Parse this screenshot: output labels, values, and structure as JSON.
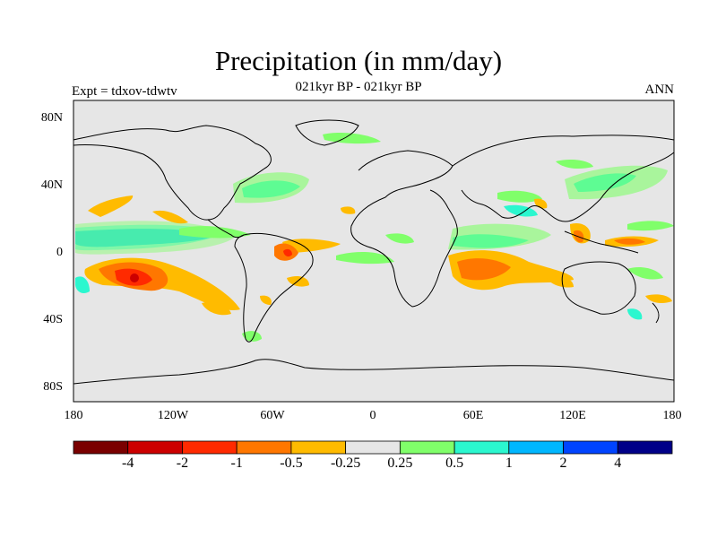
{
  "title": "Precipitation (in mm/day)",
  "subtitle": "021kyr BP - 021kyr BP",
  "left_label": "Expt = tdxov-tdwtv",
  "right_label": "ANN",
  "lat_labels": [
    "80N",
    "40N",
    "0",
    "40S",
    "80S"
  ],
  "lon_labels": [
    "180",
    "120W",
    "60W",
    "0",
    "60E",
    "120E",
    "180"
  ],
  "colorbar": {
    "colors": [
      "#7a0000",
      "#cc0000",
      "#ff2a00",
      "#ff7700",
      "#ffbb00",
      "#e6e6e6",
      "#80ff6a",
      "#2bf7cf",
      "#00b7ff",
      "#0044ff",
      "#000088"
    ],
    "labels": [
      "-4",
      "-2",
      "-1",
      "-0.5",
      "-0.25",
      "0.25",
      "0.5",
      "1",
      "2",
      "4"
    ]
  },
  "colors": {
    "map_background": "#e6e6e6",
    "coastline": "#000000"
  }
}
